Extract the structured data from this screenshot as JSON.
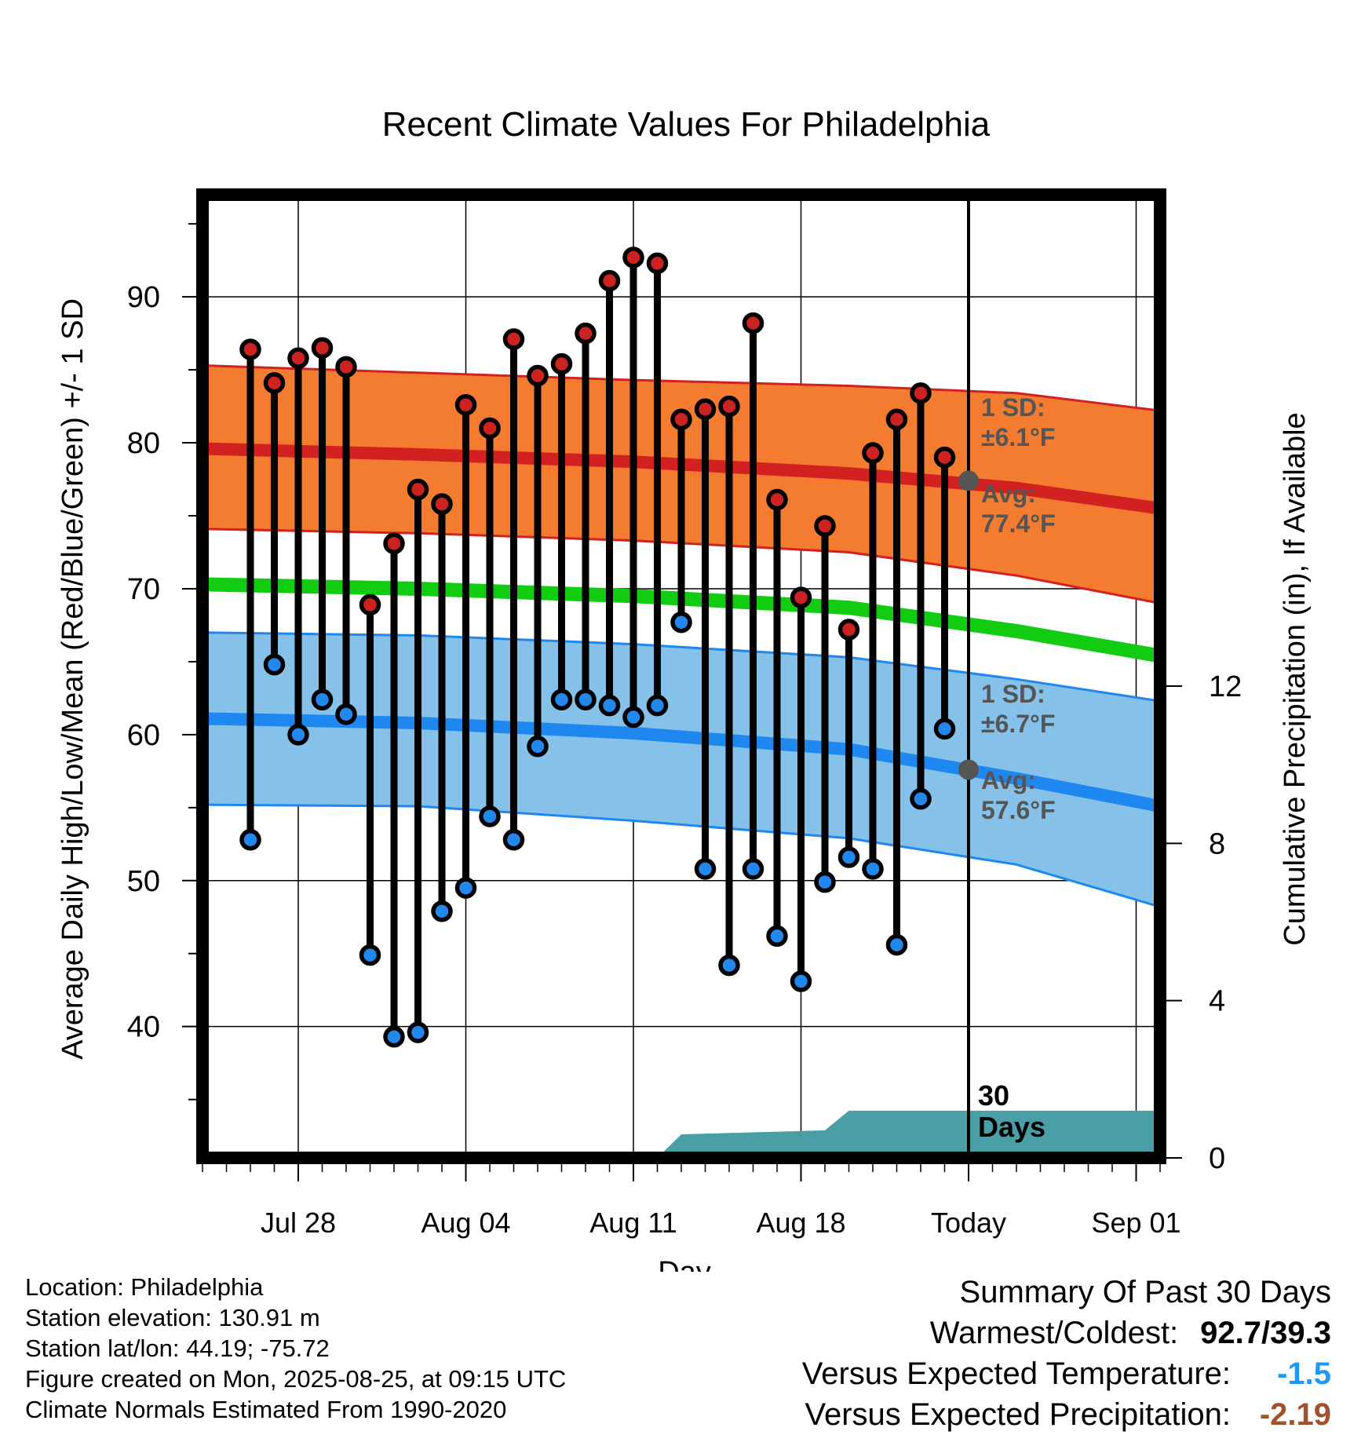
{
  "chart_data": {
    "type": "line",
    "title": "Recent Climate Values For Philadelphia",
    "xlabel": "Day",
    "ylabel": "Average Daily High/Low/Mean (Red/Blue/Green) +/- 1 SD",
    "y2label": "Cumulative Precipitation (in), If Available",
    "ylim": [
      31,
      97
    ],
    "y2lim": [
      0,
      24.5
    ],
    "y_ticks": [
      40,
      50,
      60,
      70,
      80,
      90
    ],
    "y2_ticks": [
      0,
      4,
      8,
      12
    ],
    "xlim": [
      "2025-07-24",
      "2025-09-02"
    ],
    "x_ticks": [
      {
        "date": "2025-07-28",
        "label": "Jul 28"
      },
      {
        "date": "2025-08-04",
        "label": "Aug 04"
      },
      {
        "date": "2025-08-11",
        "label": "Aug 11"
      },
      {
        "date": "2025-08-18",
        "label": "Aug 18"
      },
      {
        "date": "2025-08-25",
        "label": "Today"
      },
      {
        "date": "2025-09-01",
        "label": "Sep 01"
      }
    ],
    "today": "2025-08-25",
    "today_label": "30\nDays",
    "dates": [
      "2025-07-26",
      "2025-07-27",
      "2025-07-28",
      "2025-07-29",
      "2025-07-30",
      "2025-07-31",
      "2025-08-01",
      "2025-08-02",
      "2025-08-03",
      "2025-08-04",
      "2025-08-05",
      "2025-08-06",
      "2025-08-07",
      "2025-08-08",
      "2025-08-09",
      "2025-08-10",
      "2025-08-11",
      "2025-08-12",
      "2025-08-13",
      "2025-08-14",
      "2025-08-15",
      "2025-08-16",
      "2025-08-17",
      "2025-08-18",
      "2025-08-19",
      "2025-08-20",
      "2025-08-21",
      "2025-08-22",
      "2025-08-23",
      "2025-08-24"
    ],
    "series": [
      {
        "name": "High",
        "color": "#cc2222",
        "values": [
          86.4,
          84.1,
          85.8,
          86.5,
          85.2,
          68.9,
          73.1,
          76.8,
          75.8,
          82.6,
          81.0,
          87.1,
          84.6,
          85.4,
          87.5,
          91.1,
          92.7,
          92.3,
          81.6,
          82.3,
          82.5,
          88.2,
          76.1,
          69.4,
          74.3,
          67.2,
          79.3,
          81.6,
          83.4,
          79.0
        ]
      },
      {
        "name": "Low",
        "color": "#2288ee",
        "values": [
          52.8,
          64.8,
          60.0,
          62.4,
          61.4,
          44.9,
          39.3,
          39.6,
          47.9,
          49.5,
          54.4,
          52.8,
          59.2,
          62.4,
          62.4,
          62.0,
          61.2,
          62.0,
          67.7,
          50.8,
          44.2,
          50.8,
          46.2,
          43.1,
          49.9,
          51.6,
          50.8,
          45.6,
          55.6,
          60.4
        ]
      }
    ],
    "normals": {
      "dates": [
        "2025-07-24",
        "2025-08-02",
        "2025-08-11",
        "2025-08-20",
        "2025-08-27",
        "2025-09-02"
      ],
      "high": [
        79.6,
        79.2,
        78.7,
        77.9,
        76.9,
        75.5
      ],
      "high_sd_upper": [
        85.3,
        84.8,
        84.3,
        83.9,
        83.4,
        82.2
      ],
      "high_sd_lower": [
        74.1,
        73.8,
        73.3,
        72.5,
        70.9,
        69.0
      ],
      "mean": [
        70.3,
        70.0,
        69.5,
        68.7,
        67.1,
        65.4
      ],
      "low": [
        61.1,
        60.8,
        60.1,
        59.0,
        57.0,
        55.1
      ],
      "low_sd_upper": [
        67.0,
        66.8,
        66.2,
        65.3,
        63.8,
        62.3
      ],
      "low_sd_lower": [
        55.2,
        55.1,
        54.1,
        52.9,
        51.1,
        48.2
      ]
    },
    "precipitation": {
      "dates": [
        "2025-08-12",
        "2025-08-13",
        "2025-08-19",
        "2025-08-20",
        "2025-08-21",
        "2025-09-02"
      ],
      "values": [
        0.0,
        0.6,
        0.7,
        1.2,
        1.2,
        1.2
      ]
    },
    "annotations": [
      {
        "line1": "1 SD:",
        "line2": "±6.1°F"
      },
      {
        "line1": "Avg:",
        "line2": "77.4°F"
      },
      {
        "line1": "1 SD:",
        "line2": "±6.7°F"
      },
      {
        "line1": "Avg:",
        "line2": "57.6°F"
      }
    ],
    "today_markers": [
      77.4,
      57.6
    ]
  },
  "info": {
    "location": "Location: Philadelphia",
    "elevation": "Station elevation: 130.91 m",
    "latlon": "Station lat/lon: 44.19; -75.72",
    "created": "Figure created on Mon, 2025-08-25, at 09:15 UTC",
    "normals": "Climate Normals Estimated From 1990-2020"
  },
  "summary": {
    "title": "Summary Of Past 30 Days",
    "warmest_label": "Warmest/Coldest:",
    "warmest_value": "92.7/39.3",
    "temp_label": "Versus Expected Temperature:",
    "temp_value": "-1.5",
    "temp_color": "#2299ee",
    "precip_label": "Versus Expected Precipitation:",
    "precip_value": "-2.19",
    "precip_color": "#a0522d"
  }
}
